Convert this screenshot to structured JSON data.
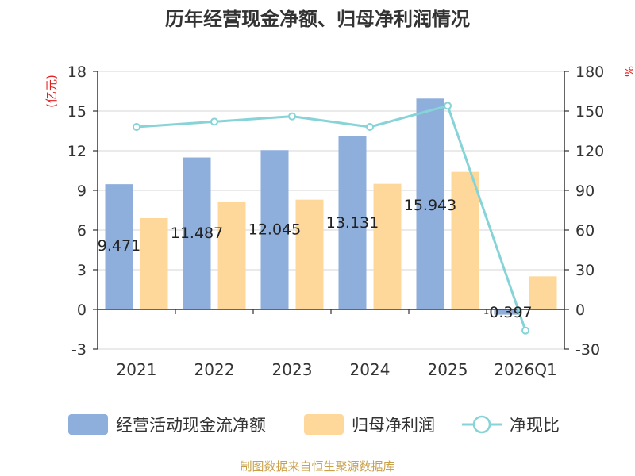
{
  "chart_data": {
    "type": "bar",
    "title": "历年经营现金净额、归母净利润情况",
    "categories": [
      "2021",
      "2022",
      "2023",
      "2024",
      "2025",
      "2026Q1"
    ],
    "series": [
      {
        "name": "经营活动现金流净额",
        "kind": "bar",
        "axis": "left",
        "color": "#8eaedb",
        "values": [
          9.471,
          11.487,
          12.045,
          13.131,
          15.943,
          -0.397
        ],
        "labels": [
          "9.471",
          "11.487",
          "12.045",
          "13.131",
          "15.943",
          "-0.397"
        ]
      },
      {
        "name": "归母净利润",
        "kind": "bar",
        "axis": "left",
        "color": "#fdd89a",
        "values": [
          6.9,
          8.1,
          8.3,
          9.5,
          10.4,
          2.5
        ]
      },
      {
        "name": "净现比",
        "kind": "line",
        "axis": "right",
        "color": "#86d3d8",
        "values": [
          138,
          142,
          146,
          138,
          154,
          -16
        ]
      }
    ],
    "y_left": {
      "label": "(亿元)",
      "min": -3,
      "max": 18,
      "ticks": [
        -3,
        0,
        3,
        6,
        9,
        12,
        15,
        18
      ]
    },
    "y_right": {
      "label": "%",
      "min": -30,
      "max": 180,
      "ticks": [
        -30,
        0,
        30,
        60,
        90,
        120,
        150,
        180
      ]
    },
    "grid": true,
    "legend_position": "bottom"
  },
  "source": "制图数据来自恒生聚源数据库"
}
